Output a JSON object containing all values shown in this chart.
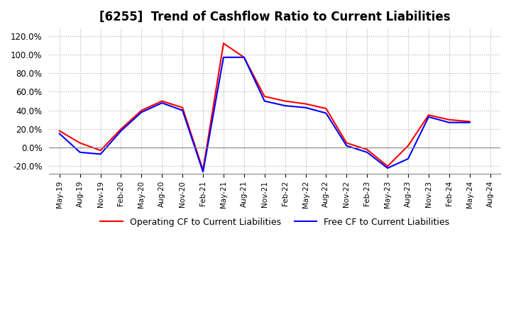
{
  "title": "[6255]  Trend of Cashflow Ratio to Current Liabilities",
  "legend_labels": [
    "Operating CF to Current Liabilities",
    "Free CF to Current Liabilities"
  ],
  "line_colors": [
    "#ff0000",
    "#0000ff"
  ],
  "background_color": "#ffffff",
  "grid_color": "#b0b0b0",
  "yticks": [
    -0.2,
    0.0,
    0.2,
    0.4,
    0.6,
    0.8,
    1.0,
    1.2
  ],
  "ylim": [
    -0.28,
    1.28
  ],
  "x_labels": [
    "May-19",
    "Aug-19",
    "Nov-19",
    "Feb-20",
    "May-20",
    "Aug-20",
    "Nov-20",
    "Feb-21",
    "May-21",
    "Aug-21",
    "Nov-21",
    "Feb-22",
    "May-22",
    "Aug-22",
    "Nov-22",
    "Feb-23",
    "May-23",
    "Aug-23",
    "Nov-23",
    "Feb-24",
    "May-24",
    "Aug-24"
  ],
  "operating_cf": [
    0.18,
    0.05,
    -0.03,
    0.2,
    0.4,
    0.5,
    0.43,
    -0.24,
    1.12,
    0.97,
    0.55,
    0.5,
    0.47,
    0.42,
    0.05,
    -0.02,
    -0.2,
    0.02,
    0.35,
    0.3,
    0.28,
    null
  ],
  "free_cf": [
    0.15,
    -0.05,
    -0.07,
    0.18,
    0.38,
    0.48,
    0.4,
    -0.26,
    0.97,
    0.97,
    0.5,
    0.45,
    0.43,
    0.37,
    0.02,
    -0.05,
    -0.22,
    -0.12,
    0.33,
    0.27,
    0.27,
    null
  ]
}
